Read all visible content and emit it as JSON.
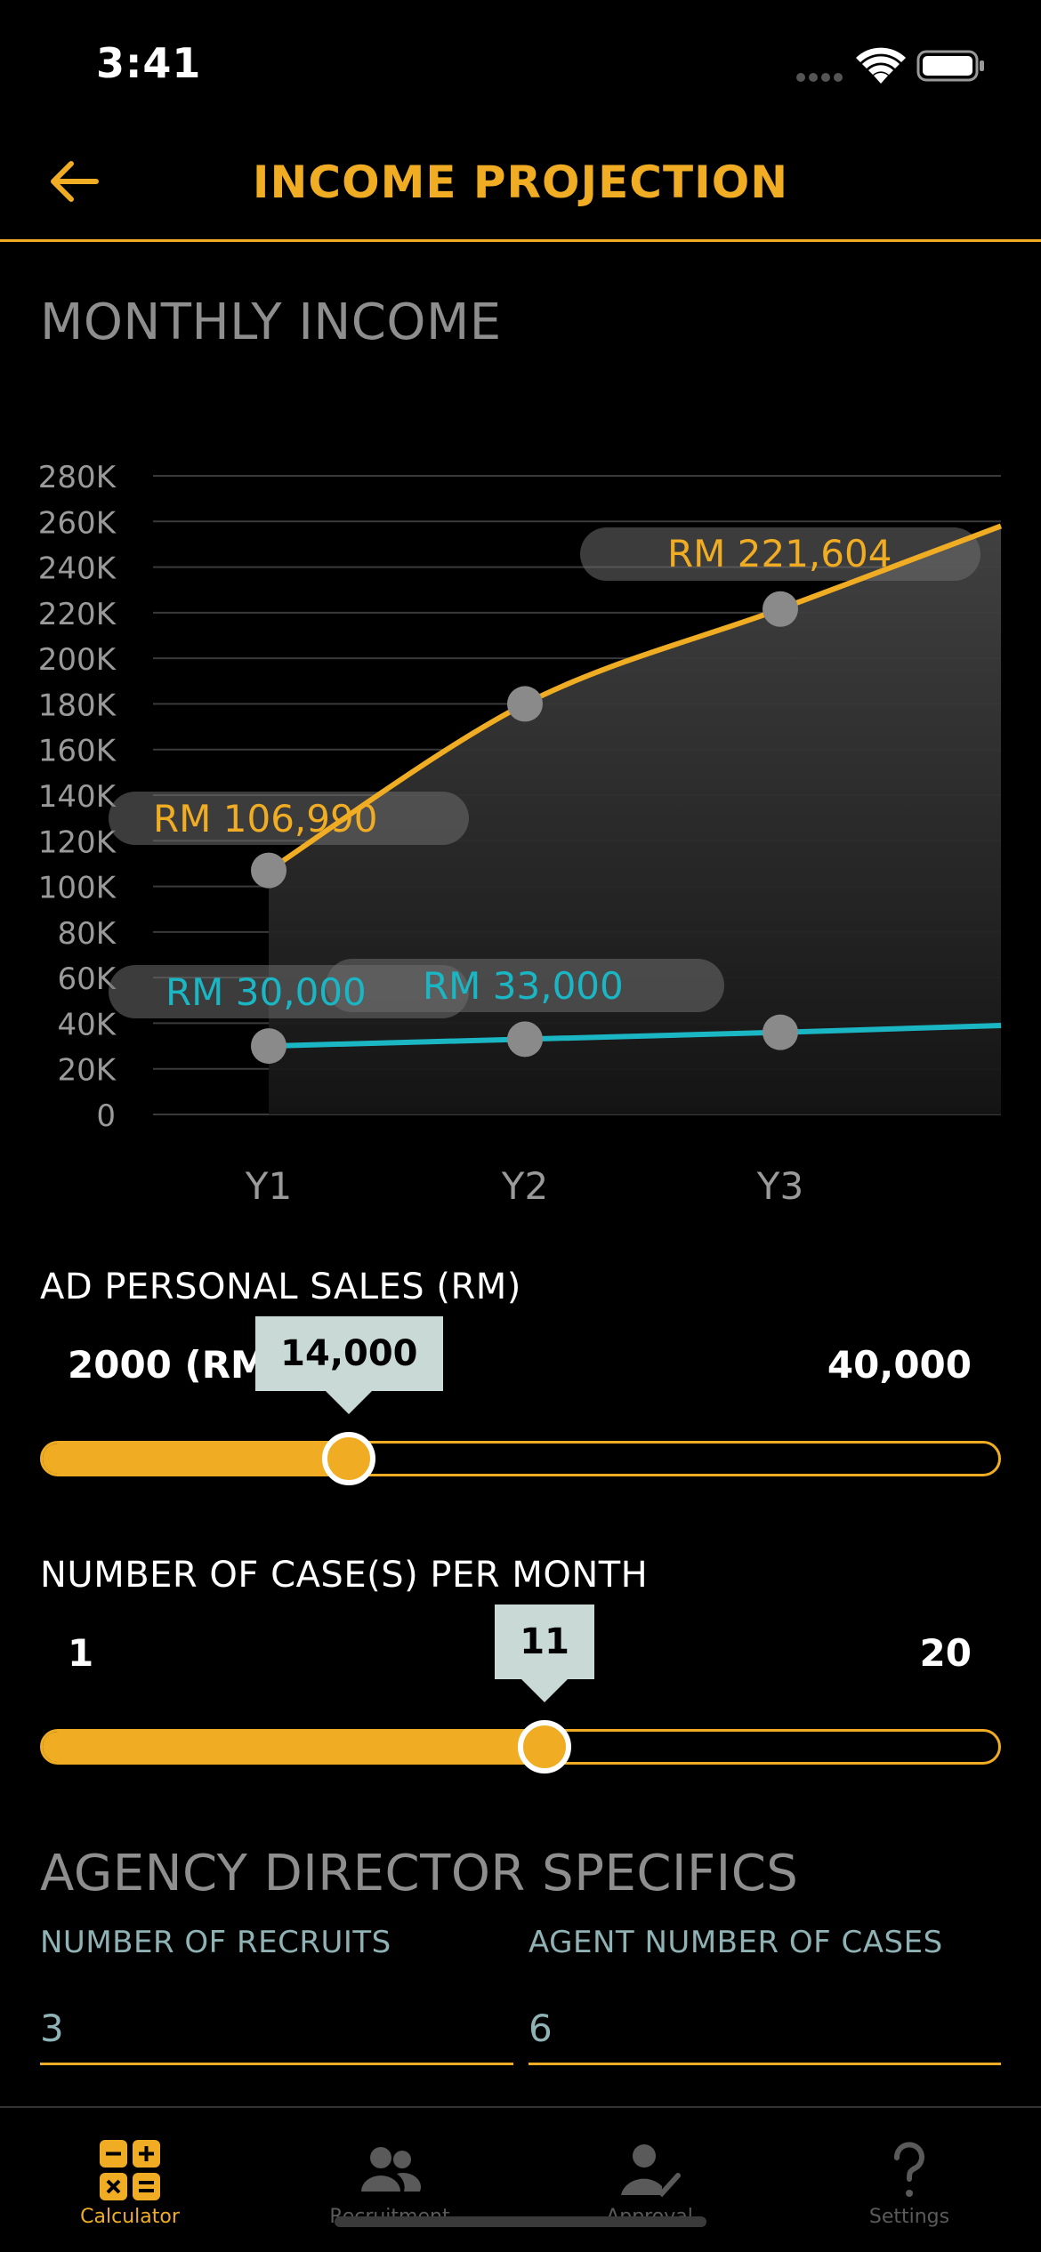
{
  "status": {
    "time": "3:41"
  },
  "nav": {
    "title": "INCOME PROJECTION"
  },
  "monthly_income": {
    "title": "MONTHLY INCOME"
  },
  "chart_data": {
    "type": "area",
    "title": "",
    "categories": [
      "Y1",
      "Y2",
      "Y3"
    ],
    "y_ticks": [
      "280K",
      "260K",
      "240K",
      "220K",
      "200K",
      "180K",
      "160K",
      "140K",
      "120K",
      "100K",
      "80K",
      "60K",
      "40K",
      "20K",
      "0"
    ],
    "ylim": [
      0,
      280000
    ],
    "series": [
      {
        "color": "#f0ad24",
        "values": [
          106990,
          180000,
          221604
        ],
        "end_value": 258000,
        "labels": [
          "RM 106,990",
          "",
          "RM 221,604"
        ]
      },
      {
        "color": "#1ab6c4",
        "values": [
          30000,
          33000,
          36000
        ],
        "end_value": 39000,
        "labels": [
          "RM 30,000",
          "RM 33,000",
          ""
        ]
      }
    ],
    "grid": true
  },
  "personal_sales": {
    "label": "AD PERSONAL SALES (RM)",
    "min_label": "2000 (RM)",
    "max_label": "40,000",
    "value_label": "14,000",
    "fraction": 0.316
  },
  "cases": {
    "label": "NUMBER OF CASE(S) PER MONTH",
    "min_label": "1",
    "max_label": "20",
    "value_label": "11",
    "fraction": 0.526
  },
  "ad_specifics": {
    "title": "AGENCY DIRECTOR SPECIFICS",
    "recruits_label": "NUMBER OF RECRUITS",
    "recruits_value": "3",
    "agent_cases_label": "AGENT NUMBER OF CASES",
    "agent_cases_value": "6"
  },
  "tabs": [
    {
      "label": "Calculator",
      "icon": "calculator-icon",
      "active": true
    },
    {
      "label": "Recruitment",
      "icon": "people-icon",
      "active": false
    },
    {
      "label": "Approval",
      "icon": "approval-icon",
      "active": false
    },
    {
      "label": "Settings",
      "icon": "question-icon",
      "active": false
    }
  ],
  "colors": {
    "accent": "#f0ad24",
    "teal": "#1ab6c4",
    "inactive": "#5a5a5a"
  }
}
